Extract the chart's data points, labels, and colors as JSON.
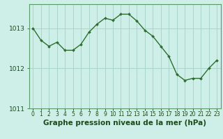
{
  "hours": [
    0,
    1,
    2,
    3,
    4,
    5,
    6,
    7,
    8,
    9,
    10,
    11,
    12,
    13,
    14,
    15,
    16,
    17,
    18,
    19,
    20,
    21,
    22,
    23
  ],
  "pressure": [
    1013.0,
    1012.7,
    1012.55,
    1012.65,
    1012.45,
    1012.45,
    1012.6,
    1012.9,
    1013.1,
    1013.25,
    1013.2,
    1013.35,
    1013.35,
    1013.18,
    1012.95,
    1012.8,
    1012.55,
    1012.3,
    1011.85,
    1011.7,
    1011.75,
    1011.75,
    1012.0,
    1012.2
  ],
  "line_color": "#2d6e2d",
  "marker": "D",
  "marker_size": 2.0,
  "line_width": 1.0,
  "bg_color": "#ceeee8",
  "grid_color": "#aad4cc",
  "xlabel": "Graphe pression niveau de la mer (hPa)",
  "xlabel_fontsize": 7.5,
  "xlabel_color": "#1a4a1a",
  "yticks": [
    1011,
    1012,
    1013
  ],
  "ylim": [
    1011.3,
    1013.6
  ],
  "xlim": [
    -0.5,
    23.5
  ],
  "xtick_labels": [
    "0",
    "1",
    "2",
    "3",
    "4",
    "5",
    "6",
    "7",
    "8",
    "9",
    "10",
    "11",
    "12",
    "13",
    "14",
    "15",
    "16",
    "17",
    "18",
    "19",
    "20",
    "21",
    "22",
    "23"
  ],
  "ytick_fontsize": 6.5,
  "xtick_fontsize": 5.5,
  "plot_bg_color": "#ceeee8",
  "outer_bg_color": "#ceeee8",
  "spine_color": "#5a9a6a"
}
